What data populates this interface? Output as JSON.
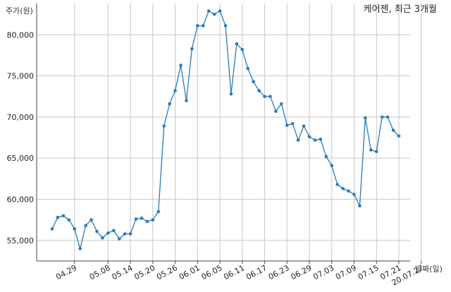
{
  "chart_data": {
    "type": "line",
    "title": "케어젠, 최근 3개월",
    "ylabel": "주가(원)",
    "xlabel": "날짜(일)",
    "ylim": [
      52500,
      83800
    ],
    "yticks": [
      55000,
      60000,
      65000,
      70000,
      75000,
      80000
    ],
    "ytick_labels": [
      "55,000",
      "60,000",
      "65,000",
      "70,000",
      "75,000",
      "80,000"
    ],
    "xtick_labels": [
      "04.29",
      "05.08",
      "05.14",
      "05.20",
      "05.26",
      "06.01",
      "06.05",
      "06.11",
      "06.17",
      "06.23",
      "06.29",
      "07.03",
      "07.09",
      "07.15",
      "07.21",
      "20.07.27"
    ],
    "xtick_index": [
      4,
      10,
      14,
      18,
      22,
      26,
      30,
      34,
      38,
      42,
      46,
      50,
      54,
      58,
      62,
      66
    ],
    "grid": true,
    "color": "#2b7bb9",
    "series": [
      {
        "values": [
          56400,
          57800,
          58000,
          57500,
          56400,
          54000,
          56800,
          57500,
          56100,
          55300,
          55900,
          56200,
          55200,
          55800,
          55800,
          57600,
          57700,
          57300,
          57500,
          58500,
          68900,
          71600,
          73200,
          76300,
          72000,
          78300,
          81100,
          81100,
          82900,
          82500,
          82900,
          81100,
          72800,
          78900,
          78200,
          75900,
          74300,
          73200,
          72500,
          72500,
          70700,
          71600,
          69000,
          69200,
          67200,
          68900,
          67600,
          67200,
          67300,
          65200,
          64100,
          61800,
          61300,
          61000,
          60600,
          59200,
          69900,
          66000,
          65800,
          70000,
          70000,
          68400,
          67700
        ]
      }
    ]
  }
}
